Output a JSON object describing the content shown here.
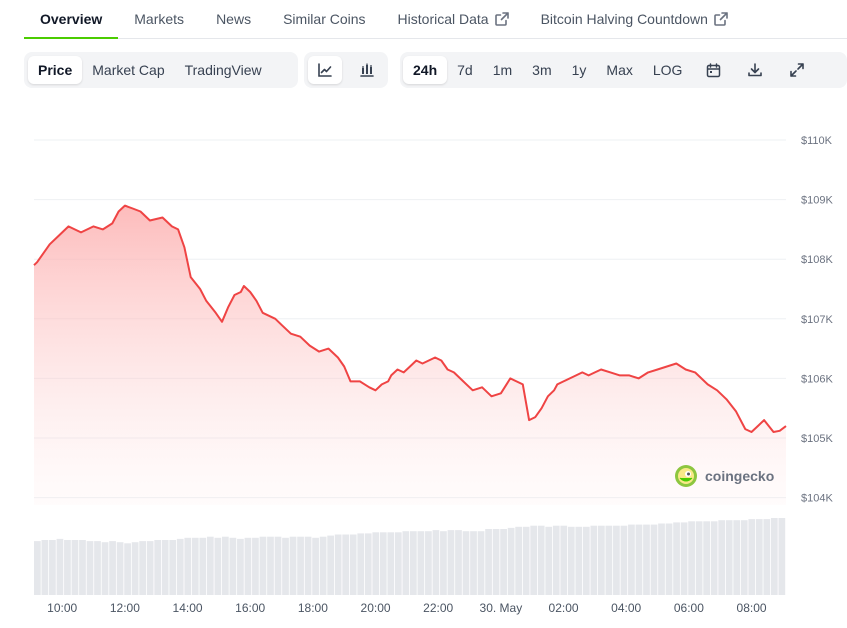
{
  "tabs": [
    {
      "label": "Overview",
      "active": true,
      "external": false
    },
    {
      "label": "Markets",
      "active": false,
      "external": false
    },
    {
      "label": "News",
      "active": false,
      "external": false
    },
    {
      "label": "Similar Coins",
      "active": false,
      "external": false
    },
    {
      "label": "Historical Data",
      "active": false,
      "external": true
    },
    {
      "label": "Bitcoin Halving Countdown",
      "active": false,
      "external": true
    }
  ],
  "toolbar": {
    "metric_options": [
      "Price",
      "Market Cap",
      "TradingView"
    ],
    "metric_selected": "Price",
    "chart_type_icons": [
      "line-chart-icon",
      "candlestick-chart-icon"
    ],
    "chart_type_selected": "line",
    "ranges": [
      "24h",
      "7d",
      "1m",
      "3m",
      "1y",
      "Max",
      "LOG"
    ],
    "range_selected": "24h",
    "action_icons": [
      "calendar-icon",
      "download-icon",
      "expand-icon"
    ]
  },
  "watermark": "coingecko",
  "colors": {
    "line": "#ef4444",
    "fill": "#fecaca",
    "active_tab": "#4bcc00",
    "volume": "#e5e7eb"
  },
  "chart_data": {
    "type": "area",
    "x_tick_labels": [
      "10:00",
      "12:00",
      "14:00",
      "16:00",
      "18:00",
      "20:00",
      "22:00",
      "30. May",
      "02:00",
      "04:00",
      "06:00",
      "08:00"
    ],
    "y_tick_labels": [
      "$104K",
      "$105K",
      "$106K",
      "$107K",
      "$108K",
      "$109K",
      "$110K"
    ],
    "y_ticks": [
      104000,
      105000,
      106000,
      107000,
      108000,
      109000,
      110000
    ],
    "ylim": [
      103000,
      110000
    ],
    "x_hours": [
      9.1,
      9.2,
      9.6,
      9.9,
      10.2,
      10.6,
      11.0,
      11.3,
      11.6,
      11.8,
      12.0,
      12.25,
      12.5,
      12.8,
      13.2,
      13.5,
      13.7,
      13.9,
      14.1,
      14.4,
      14.6,
      14.9,
      15.1,
      15.3,
      15.5,
      15.7,
      15.8,
      16.0,
      16.2,
      16.4,
      16.6,
      16.8,
      17.0,
      17.3,
      17.6,
      17.9,
      18.2,
      18.5,
      18.8,
      19.0,
      19.2,
      19.5,
      19.8,
      20.0,
      20.2,
      20.4,
      20.5,
      20.7,
      20.9,
      21.1,
      21.3,
      21.5,
      21.7,
      21.9,
      22.1,
      22.3,
      22.5,
      22.8,
      23.1,
      23.4,
      23.7,
      24.0,
      24.3,
      24.5,
      24.7,
      24.9,
      25.1,
      25.3,
      25.5,
      25.7,
      25.8,
      26.0,
      26.2,
      26.4,
      26.6,
      26.8,
      27.0,
      27.2,
      27.5,
      27.8,
      28.1,
      28.4,
      28.7,
      29.0,
      29.3,
      29.6,
      29.9,
      30.2,
      30.4,
      30.6,
      30.9,
      31.2,
      31.5,
      31.8,
      32.0,
      32.2,
      32.4,
      32.7,
      32.9,
      33.1
    ],
    "values": [
      107900,
      107950,
      108250,
      108400,
      108550,
      108450,
      108550,
      108500,
      108600,
      108800,
      108900,
      108850,
      108800,
      108650,
      108700,
      108550,
      108500,
      108200,
      107700,
      107500,
      107300,
      107100,
      106950,
      107200,
      107400,
      107450,
      107550,
      107450,
      107300,
      107100,
      107050,
      107000,
      106900,
      106750,
      106700,
      106550,
      106450,
      106500,
      106350,
      106200,
      105950,
      105950,
      105850,
      105800,
      105900,
      105950,
      106050,
      106150,
      106100,
      106200,
      106300,
      106250,
      106300,
      106350,
      106300,
      106150,
      106100,
      105950,
      105800,
      105850,
      105700,
      105750,
      106000,
      105950,
      105900,
      105300,
      105350,
      105500,
      105700,
      105800,
      105900,
      105950,
      106000,
      106050,
      106100,
      106050,
      106100,
      106150,
      106100,
      106050,
      106050,
      106000,
      106100,
      106150,
      106200,
      106250,
      106150,
      106100,
      106000,
      105900,
      105800,
      105650,
      105450,
      105150,
      105100,
      105200,
      105300,
      105100,
      105120,
      105200
    ],
    "volume_relative": [
      0.49,
      0.5,
      0.5,
      0.51,
      0.5,
      0.5,
      0.5,
      0.49,
      0.49,
      0.48,
      0.49,
      0.48,
      0.47,
      0.48,
      0.49,
      0.49,
      0.5,
      0.5,
      0.5,
      0.51,
      0.52,
      0.52,
      0.52,
      0.53,
      0.52,
      0.53,
      0.52,
      0.51,
      0.52,
      0.52,
      0.53,
      0.53,
      0.53,
      0.52,
      0.53,
      0.53,
      0.53,
      0.52,
      0.53,
      0.54,
      0.55,
      0.55,
      0.55,
      0.56,
      0.56,
      0.57,
      0.57,
      0.57,
      0.57,
      0.58,
      0.58,
      0.58,
      0.58,
      0.59,
      0.58,
      0.59,
      0.59,
      0.58,
      0.58,
      0.58,
      0.6,
      0.6,
      0.6,
      0.61,
      0.62,
      0.62,
      0.63,
      0.63,
      0.62,
      0.63,
      0.63,
      0.62,
      0.62,
      0.62,
      0.63,
      0.63,
      0.63,
      0.63,
      0.63,
      0.64,
      0.64,
      0.64,
      0.64,
      0.65,
      0.65,
      0.66,
      0.66,
      0.67,
      0.67,
      0.67,
      0.67,
      0.68,
      0.68,
      0.68,
      0.68,
      0.69,
      0.69,
      0.69,
      0.7,
      0.7
    ]
  }
}
